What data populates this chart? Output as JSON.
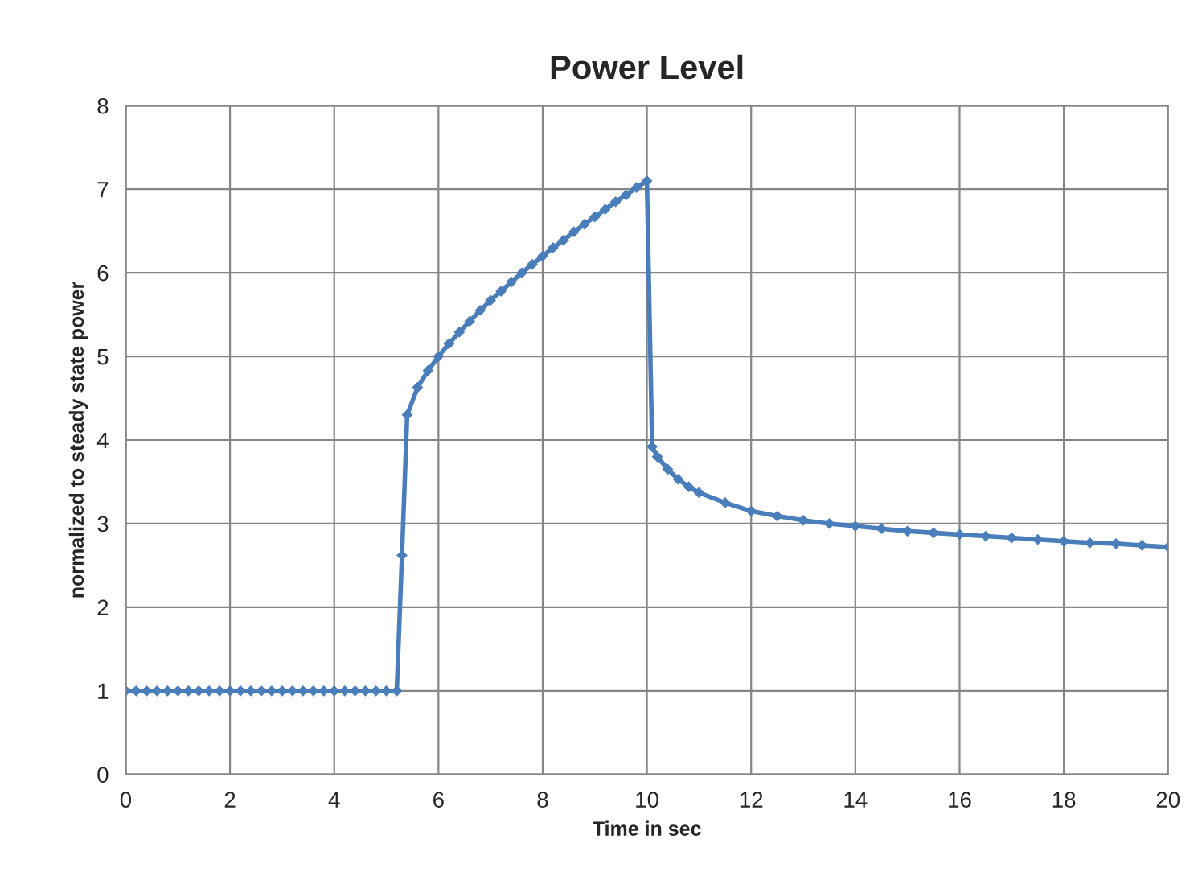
{
  "chart_data": {
    "type": "line",
    "title": "Power Level",
    "xlabel": "Time in sec",
    "ylabel": "normalized to steady state power",
    "xlim": [
      0,
      20
    ],
    "xticks": [
      0,
      2,
      4,
      6,
      8,
      10,
      12,
      14,
      16,
      18,
      20
    ],
    "ylim": [
      0,
      8
    ],
    "yticks": [
      0,
      1,
      2,
      3,
      4,
      5,
      6,
      7,
      8
    ],
    "grid": true,
    "marker": "diamond",
    "line_style": "solid",
    "legend": false,
    "series": [
      {
        "color": "#4a7ebb",
        "x": [
          0,
          0.2,
          0.4,
          0.6,
          0.8,
          1.0,
          1.2,
          1.4,
          1.6,
          1.8,
          2.0,
          2.2,
          2.4,
          2.6,
          2.8,
          3.0,
          3.2,
          3.4,
          3.6,
          3.8,
          4.0,
          4.2,
          4.4,
          4.6,
          4.8,
          5.0,
          5.2,
          5.3,
          5.4,
          5.6,
          5.8,
          6.0,
          6.2,
          6.4,
          6.6,
          6.8,
          7.0,
          7.2,
          7.4,
          7.6,
          7.8,
          8.0,
          8.2,
          8.4,
          8.6,
          8.8,
          9.0,
          9.2,
          9.4,
          9.6,
          9.8,
          10.0,
          10.1,
          10.2,
          10.4,
          10.6,
          10.8,
          11.0,
          11.5,
          12.0,
          12.5,
          13.0,
          13.5,
          14.0,
          14.5,
          15.0,
          15.5,
          16.0,
          16.5,
          17.0,
          17.5,
          18.0,
          18.5,
          19.0,
          19.5,
          20.0
        ],
        "values": [
          1,
          1,
          1,
          1,
          1,
          1,
          1,
          1,
          1,
          1,
          1,
          1,
          1,
          1,
          1,
          1,
          1,
          1,
          1,
          1,
          1,
          1,
          1,
          1,
          1,
          1,
          1,
          2.62,
          4.3,
          4.63,
          4.83,
          5.0,
          5.15,
          5.29,
          5.42,
          5.55,
          5.67,
          5.78,
          5.89,
          6.0,
          6.1,
          6.2,
          6.3,
          6.39,
          6.49,
          6.58,
          6.67,
          6.76,
          6.85,
          6.93,
          7.02,
          7.1,
          3.92,
          3.8,
          3.65,
          3.53,
          3.44,
          3.37,
          3.25,
          3.15,
          3.09,
          3.04,
          3.0,
          2.97,
          2.94,
          2.91,
          2.89,
          2.87,
          2.85,
          2.83,
          2.81,
          2.79,
          2.77,
          2.76,
          2.74,
          2.72
        ]
      }
    ]
  }
}
